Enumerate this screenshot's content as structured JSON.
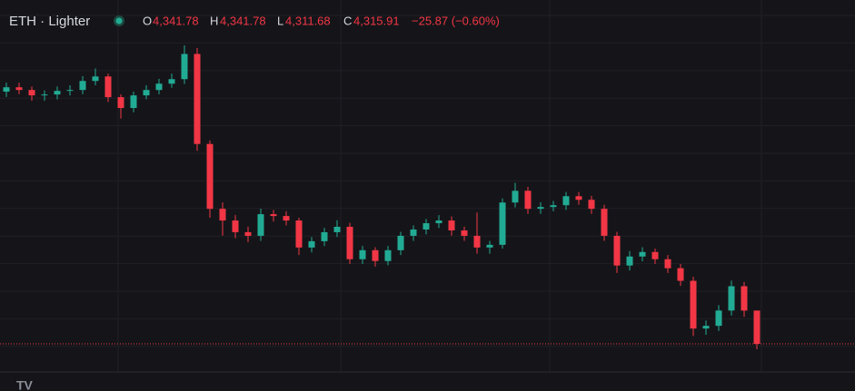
{
  "chart_data": {
    "type": "candlestick",
    "symbol": "ETH · Lighter",
    "header": {
      "open_label": "O",
      "open": "4,341.78",
      "high_label": "H",
      "high": "4,341.78",
      "low_label": "L",
      "low": "4,311.68",
      "close_label": "C",
      "close": "4,315.91",
      "change": "−25.87 (−0.60%)"
    },
    "up_color": "#22ab94",
    "down_color": "#f23645",
    "open": [
      4512.0,
      4515.41,
      4513.31,
      4509.11,
      4509.81,
      4512.61,
      4513.31,
      4520.31,
      4523.81,
      4507.71,
      4499.31,
      4509.11,
      4513.31,
      4518.21,
      4521.71,
      4541.31,
      4471.31,
      4420.91,
      4411.81,
      4402.71,
      4399.91,
      4416.71,
      4415.31,
      4411.81,
      4390.81,
      4395.71,
      4402.71,
      4406.91,
      4381.71,
      4388.71,
      4380.31,
      4388.71,
      4399.91,
      4404.81,
      4409.71,
      4411.81,
      4404.11,
      4399.91,
      4390.81,
      4392.91,
      4425.81,
      4434.91,
      4420.91,
      4422.31,
      4423.71,
      4430.71,
      4427.91,
      4420.91,
      4399.91,
      4376.81,
      4383.81,
      4387.31,
      4381.71,
      4374.71,
      4364.91,
      4327.81,
      4329.91,
      4341.81,
      4360.71,
      4341.78
    ],
    "high": [
      4519,
      4519,
      4516,
      4513,
      4516,
      4517,
      4524,
      4530,
      4526,
      4510,
      4512,
      4517,
      4522,
      4526,
      4548,
      4546,
      4474,
      4426,
      4416,
      4407,
      4421,
      4420,
      4419,
      4414,
      4399,
      4406,
      4412,
      4410,
      4392,
      4391,
      4392,
      4403,
      4408,
      4413,
      4416,
      4415,
      4407,
      4418,
      4396,
      4429,
      4441,
      4438,
      4426,
      4427,
      4434,
      4434,
      4431,
      4424,
      4403,
      4388,
      4391,
      4390,
      4385,
      4378,
      4368,
      4334,
      4346,
      4365,
      4364,
      4341.78
    ],
    "low": [
      4508,
      4510,
      4505,
      4505,
      4506,
      4509,
      4510,
      4517,
      4504,
      4491,
      4496,
      4506,
      4510,
      4515,
      4518,
      4466,
      4414,
      4400,
      4398,
      4395,
      4396,
      4411,
      4408,
      4385,
      4387,
      4392,
      4399,
      4378,
      4378,
      4376,
      4377,
      4385,
      4396,
      4401,
      4406,
      4400,
      4396,
      4386,
      4386,
      4390,
      4422,
      4417,
      4417,
      4419,
      4420,
      4424,
      4417,
      4396,
      4371,
      4373,
      4380,
      4378,
      4371,
      4361,
      4322,
      4323,
      4326,
      4338,
      4337,
      4311.68
    ],
    "close": [
      4515.41,
      4513.31,
      4509.11,
      4509.81,
      4512.61,
      4513.31,
      4520.31,
      4523.81,
      4507.71,
      4499.31,
      4509.11,
      4513.31,
      4518.21,
      4521.71,
      4541.31,
      4471.31,
      4420.91,
      4411.81,
      4402.71,
      4399.91,
      4416.71,
      4415.31,
      4411.81,
      4390.81,
      4395.71,
      4402.71,
      4406.91,
      4381.71,
      4388.71,
      4380.31,
      4388.71,
      4399.91,
      4404.81,
      4409.71,
      4411.81,
      4404.11,
      4399.91,
      4390.81,
      4392.91,
      4425.81,
      4434.91,
      4420.91,
      4422.31,
      4423.71,
      4430.71,
      4427.91,
      4420.91,
      4399.91,
      4376.81,
      4383.81,
      4387.31,
      4381.71,
      4374.71,
      4364.91,
      4327.81,
      4329.91,
      4341.81,
      4360.71,
      4341.78,
      4315.91
    ]
  }
}
